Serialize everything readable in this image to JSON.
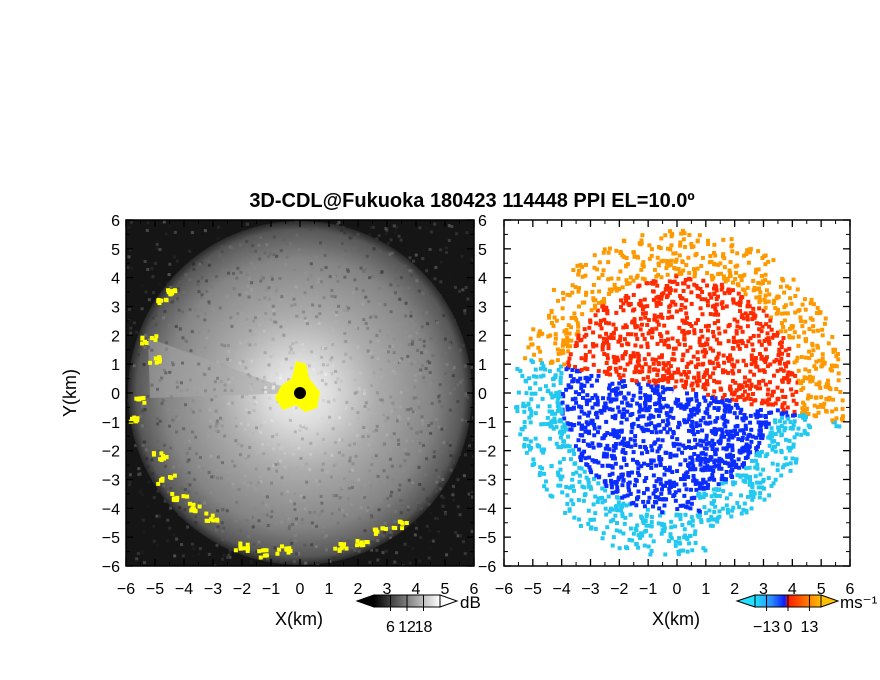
{
  "chart_data": {
    "type": "heatmap",
    "title": "3D-CDL@Fukuoka 180423 114448 PPI EL=10.0º",
    "panels": [
      {
        "name": "backscatter",
        "xlabel": "X(km)",
        "ylabel": "Y(km)",
        "xlim": [
          -6,
          6
        ],
        "ylim": [
          -6,
          6
        ],
        "xticks": [
          "−6",
          "−5",
          "−4",
          "−3",
          "−2",
          "−1",
          "0",
          "1",
          "2",
          "3",
          "4",
          "5",
          "6"
        ],
        "yticks": [
          "6",
          "5",
          "4",
          "3",
          "2",
          "1",
          "0",
          "−1",
          "−2",
          "−3",
          "−4",
          "−5",
          "−6"
        ],
        "colorbar": {
          "unit": "dB",
          "ticks": [
            "6",
            "12",
            "18"
          ],
          "range": [
            0,
            24
          ],
          "colormap": "grayscale"
        },
        "highlight_color": "#ffff00"
      },
      {
        "name": "velocity",
        "xlabel": "X(km)",
        "xlim": [
          -6,
          6
        ],
        "ylim": [
          -6,
          6
        ],
        "xticks": [
          "−6",
          "−5",
          "−4",
          "−3",
          "−2",
          "−1",
          "0",
          "1",
          "2",
          "3",
          "4",
          "5",
          "6"
        ],
        "yticks": [
          "6",
          "5",
          "4",
          "3",
          "2",
          "1",
          "0",
          "−1",
          "−2",
          "−3",
          "−4",
          "−5",
          "−6"
        ],
        "colorbar": {
          "unit": "ms⁻¹",
          "ticks": [
            "−13",
            "0",
            "13"
          ],
          "range": [
            -20,
            20
          ],
          "colormap": "blue-red"
        },
        "colors": {
          "negative": "#0a2cff",
          "positive": "#ff2a00",
          "far_negative": "#22c8f0",
          "far_positive": "#ff9900"
        }
      }
    ]
  }
}
